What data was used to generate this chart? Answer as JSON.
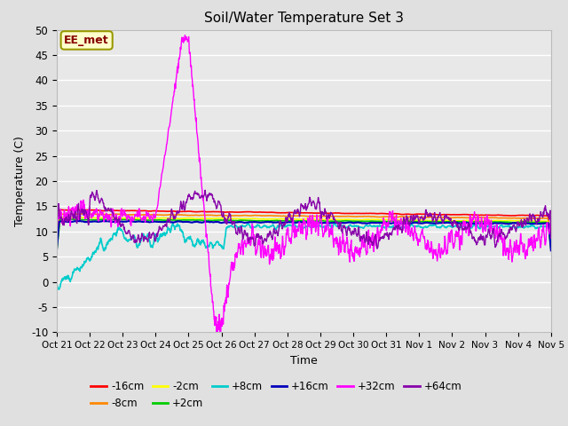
{
  "title": "Soil/Water Temperature Set 3",
  "xlabel": "Time",
  "ylabel": "Temperature (C)",
  "ylim": [
    -10,
    50
  ],
  "background_color": "#e0e0e0",
  "plot_bg_color": "#e8e8e8",
  "annotation_text": "EE_met",
  "annotation_bg": "#ffffcc",
  "annotation_border": "#999900",
  "series": [
    {
      "label": "-16cm",
      "color": "#ff0000",
      "lw": 1.2
    },
    {
      "label": "-8cm",
      "color": "#ff8800",
      "lw": 1.2
    },
    {
      "label": "-2cm",
      "color": "#ffff00",
      "lw": 1.2
    },
    {
      "label": "+2cm",
      "color": "#00cc00",
      "lw": 1.2
    },
    {
      "label": "+8cm",
      "color": "#00cccc",
      "lw": 1.2
    },
    {
      "label": "+16cm",
      "color": "#0000bb",
      "lw": 1.5
    },
    {
      "label": "+32cm",
      "color": "#ff00ff",
      "lw": 1.0
    },
    {
      "label": "+64cm",
      "color": "#8800aa",
      "lw": 1.0
    }
  ],
  "xtick_labels": [
    "Oct 21",
    "Oct 22",
    "Oct 23",
    "Oct 24",
    "Oct 25",
    "Oct 26",
    "Oct 27",
    "Oct 28",
    "Oct 29",
    "Oct 30",
    "Oct 31",
    "Nov 1",
    "Nov 2",
    "Nov 3",
    "Nov 4",
    "Nov 5"
  ],
  "ytick_values": [
    -10,
    -5,
    0,
    5,
    10,
    15,
    20,
    25,
    30,
    35,
    40,
    45,
    50
  ],
  "n_points": 1500
}
